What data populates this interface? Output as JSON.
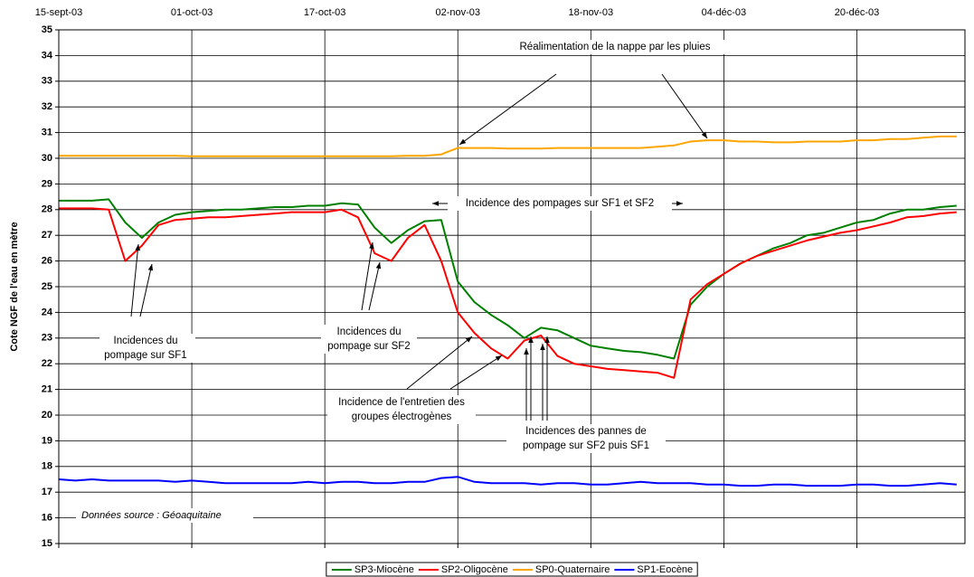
{
  "chart_data": {
    "type": "line",
    "y_label": "Cote NGF de l'eau en mètre",
    "x": [
      "2003-09-15",
      "2003-09-17",
      "2003-09-19",
      "2003-09-21",
      "2003-09-23",
      "2003-09-25",
      "2003-09-27",
      "2003-09-29",
      "2003-10-01",
      "2003-10-03",
      "2003-10-05",
      "2003-10-07",
      "2003-10-09",
      "2003-10-11",
      "2003-10-13",
      "2003-10-15",
      "2003-10-17",
      "2003-10-19",
      "2003-10-21",
      "2003-10-23",
      "2003-10-25",
      "2003-10-27",
      "2003-10-29",
      "2003-10-31",
      "2003-11-02",
      "2003-11-04",
      "2003-11-06",
      "2003-11-08",
      "2003-11-10",
      "2003-11-12",
      "2003-11-14",
      "2003-11-16",
      "2003-11-18",
      "2003-11-20",
      "2003-11-22",
      "2003-11-24",
      "2003-11-26",
      "2003-11-28",
      "2003-11-30",
      "2003-12-02",
      "2003-12-04",
      "2003-12-06",
      "2003-12-08",
      "2003-12-10",
      "2003-12-12",
      "2003-12-14",
      "2003-12-16",
      "2003-12-18",
      "2003-12-20",
      "2003-12-22",
      "2003-12-24",
      "2003-12-26",
      "2003-12-28",
      "2003-12-30",
      "2004-01-01"
    ],
    "series": [
      {
        "name": "SP3-Miocène",
        "color": "#008000",
        "values": [
          28.35,
          28.35,
          28.35,
          28.4,
          27.5,
          26.9,
          27.5,
          27.8,
          27.9,
          27.95,
          28.0,
          28.0,
          28.05,
          28.1,
          28.1,
          28.15,
          28.15,
          28.25,
          28.2,
          27.3,
          26.7,
          27.2,
          27.55,
          27.6,
          25.2,
          24.4,
          23.9,
          23.5,
          23.0,
          23.4,
          23.3,
          23.0,
          22.7,
          22.6,
          22.5,
          22.45,
          22.35,
          22.2,
          24.3,
          25.0,
          25.5,
          25.9,
          26.2,
          26.5,
          26.7,
          27.0,
          27.1,
          27.3,
          27.5,
          27.6,
          27.85,
          28.0,
          28.0,
          28.1,
          28.15
        ]
      },
      {
        "name": "SP2-Oligocène",
        "color": "#ff0000",
        "values": [
          28.05,
          28.05,
          28.05,
          28.0,
          26.0,
          26.6,
          27.4,
          27.6,
          27.65,
          27.7,
          27.7,
          27.75,
          27.8,
          27.85,
          27.9,
          27.9,
          27.9,
          28.0,
          27.7,
          26.3,
          26.0,
          26.9,
          27.4,
          26.0,
          24.0,
          23.2,
          22.6,
          22.2,
          22.9,
          23.1,
          22.3,
          22.0,
          21.9,
          21.8,
          21.75,
          21.7,
          21.65,
          21.45,
          24.5,
          25.1,
          25.5,
          25.9,
          26.2,
          26.4,
          26.6,
          26.8,
          26.95,
          27.1,
          27.2,
          27.35,
          27.5,
          27.7,
          27.75,
          27.85,
          27.9
        ]
      },
      {
        "name": "SP0-Quaternaire",
        "color": "#ffa500",
        "values": [
          30.1,
          30.1,
          30.1,
          30.1,
          30.1,
          30.1,
          30.1,
          30.1,
          30.08,
          30.08,
          30.08,
          30.08,
          30.08,
          30.08,
          30.08,
          30.08,
          30.08,
          30.08,
          30.08,
          30.08,
          30.08,
          30.1,
          30.1,
          30.15,
          30.4,
          30.4,
          30.4,
          30.38,
          30.38,
          30.38,
          30.4,
          30.4,
          30.4,
          30.4,
          30.4,
          30.4,
          30.45,
          30.5,
          30.65,
          30.7,
          30.7,
          30.65,
          30.65,
          30.62,
          30.62,
          30.65,
          30.65,
          30.65,
          30.7,
          30.7,
          30.75,
          30.75,
          30.8,
          30.85,
          30.85
        ]
      },
      {
        "name": "SP1-Eocène",
        "color": "#0000ff",
        "values": [
          17.5,
          17.45,
          17.5,
          17.45,
          17.45,
          17.45,
          17.45,
          17.4,
          17.45,
          17.4,
          17.35,
          17.35,
          17.35,
          17.35,
          17.35,
          17.4,
          17.35,
          17.4,
          17.4,
          17.35,
          17.35,
          17.4,
          17.4,
          17.55,
          17.6,
          17.4,
          17.35,
          17.35,
          17.35,
          17.3,
          17.35,
          17.35,
          17.3,
          17.3,
          17.35,
          17.4,
          17.35,
          17.35,
          17.35,
          17.3,
          17.3,
          17.25,
          17.25,
          17.3,
          17.3,
          17.25,
          17.25,
          17.25,
          17.3,
          17.3,
          17.25,
          17.25,
          17.3,
          17.35,
          17.3
        ]
      }
    ],
    "xlim": [
      "2003-09-15",
      "2004-01-02"
    ],
    "xticks": [
      {
        "value": "2003-09-15",
        "label": "15-sept-03"
      },
      {
        "value": "2003-10-01",
        "label": "01-oct-03"
      },
      {
        "value": "2003-10-17",
        "label": "17-oct-03"
      },
      {
        "value": "2003-11-02",
        "label": "02-nov-03"
      },
      {
        "value": "2003-11-18",
        "label": "18-nov-03"
      },
      {
        "value": "2003-12-04",
        "label": "04-déc-03"
      },
      {
        "value": "2003-12-20",
        "label": "20-déc-03"
      }
    ],
    "ylim": [
      15,
      35
    ],
    "yticks": [
      15,
      16,
      17,
      18,
      19,
      20,
      21,
      22,
      23,
      24,
      25,
      26,
      27,
      28,
      29,
      30,
      31,
      32,
      33,
      34,
      35
    ],
    "grid": true,
    "legend": "bottom",
    "annotations": [
      [
        "Réalimentation de la nappe par les pluies"
      ],
      [
        "Incidence des pompages sur SF1 et SF2"
      ],
      [
        "Incidences du",
        "pompage sur SF1"
      ],
      [
        "Incidences du",
        "pompage sur SF2"
      ],
      [
        "Incidence de l'entretien des",
        "groupes électrogènes"
      ],
      [
        "Incidences des pannes de",
        "pompage sur SF2 puis SF1"
      ],
      [
        "Données source : Géoaquitaine"
      ]
    ]
  }
}
